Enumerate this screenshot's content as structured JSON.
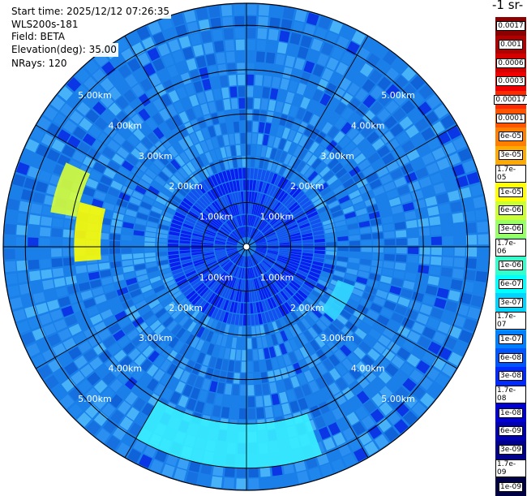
{
  "header": {
    "start_time": "Start time: 2025/12/12 07:26:35",
    "device": "WLS200s-181",
    "field": "Field: BETA",
    "elevation": "Elevation(deg): 35.00",
    "nrays": "NRays: 120"
  },
  "colorbar": {
    "title_fragment": "-1 sr-",
    "labels": [
      "0.0017",
      "0.001",
      "0.0006",
      "0.0003",
      "0.00017",
      "0.0001",
      "6e-05",
      "3e-05",
      "1.7e-05",
      "1e-05",
      "6e-06",
      "3e-06",
      "1.7e-06",
      "1e-06",
      "6e-07",
      "3e-07",
      "1.7e-07",
      "1e-07",
      "6e-08",
      "3e-08",
      "1.7e-08",
      "1e-08",
      "6e-09",
      "3e-09",
      "1.7e-09",
      "1e-09"
    ],
    "colors": [
      "#8b0000",
      "#b00000",
      "#d40000",
      "#f00000",
      "#ff2a00",
      "#ff5500",
      "#ff8000",
      "#ffaa00",
      "#ffd200",
      "#ffff00",
      "#ccff33",
      "#99ff66",
      "#66ff99",
      "#33ffcc",
      "#00ffff",
      "#00d4ff",
      "#00aaff",
      "#0080ff",
      "#0055ff",
      "#002aff",
      "#0000ff",
      "#0000d4",
      "#0000b0",
      "#00008b",
      "#000066",
      "#000044"
    ]
  },
  "chart_data": {
    "type": "heatmap",
    "projection": "polar (PPI scan)",
    "field": "BETA",
    "elevation_deg": 35.0,
    "n_rays": 120,
    "range_km": [
      0,
      5.5
    ],
    "range_rings_km": [
      1,
      2,
      3,
      4,
      5
    ],
    "ring_labels": [
      "1.00km",
      "2.00km",
      "3.00km",
      "4.00km",
      "5.00km"
    ],
    "background_value": "1e-07 to 3e-08",
    "near_field_value": "1e-08 to 3e-09",
    "features": [
      {
        "azimuth_deg_range": [
          280,
          295
        ],
        "range_km": [
          3.9,
          4.5
        ],
        "approx_value": "3e-06"
      },
      {
        "azimuth_deg_range": [
          265,
          285
        ],
        "range_km": [
          3.3,
          3.9
        ],
        "approx_value": "1e-05"
      },
      {
        "azimuth_deg_range": [
          160,
          210
        ],
        "range_km": [
          4.0,
          5.0
        ],
        "approx_value": "3e-07"
      },
      {
        "azimuth_deg_range": [
          110,
          130
        ],
        "range_km": [
          2.2,
          2.6
        ],
        "approx_value": "1e-07"
      }
    ],
    "colormap": "jet",
    "scale": "log",
    "value_range": [
      1e-09,
      0.0017
    ]
  }
}
